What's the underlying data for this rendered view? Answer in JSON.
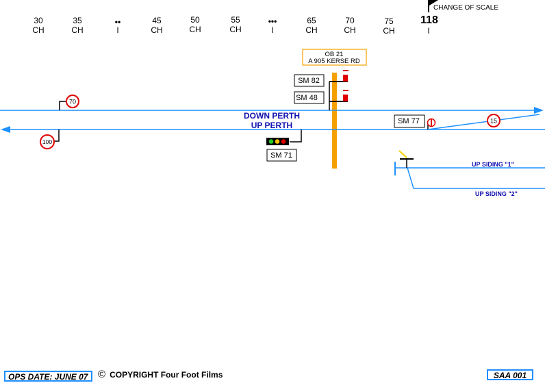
{
  "mileposts": [
    {
      "top": "30",
      "bottom": "CH"
    },
    {
      "top": "35",
      "bottom": "CH"
    },
    {
      "top": "••",
      "bottom": "I"
    },
    {
      "top": "45",
      "bottom": "CH"
    },
    {
      "top": "50",
      "bottom": "CH"
    },
    {
      "top": "55",
      "bottom": "CH"
    },
    {
      "top": "•••",
      "bottom": "I"
    },
    {
      "top": "65",
      "bottom": "CH"
    },
    {
      "top": "70",
      "bottom": "CH"
    },
    {
      "top": "75",
      "bottom": "CH"
    },
    {
      "top": "118",
      "bottom": "I"
    }
  ],
  "change_of_scale": "CHANGE OF SCALE",
  "bridge": {
    "line1": "OB 21",
    "line2": "A 905 KERSE RD"
  },
  "lines": {
    "down": "DOWN PERTH",
    "up": "UP PERTH"
  },
  "signals": {
    "sm82": "SM 82",
    "sm48": "SM 48",
    "sm77": "SM 77",
    "sm71": "SM 71"
  },
  "speed_limits": {
    "down": "70",
    "up": "100",
    "siding": "15"
  },
  "sidings": {
    "siding1": "UP SIDING \"1\"",
    "siding2": "UP SIDING \"2\""
  },
  "footer": {
    "ops_date": "OPS DATE: JUNE 07",
    "copyright_symbol": "©",
    "copyright": "COPYRIGHT Four Foot Films",
    "sheet_id": "SAA 001"
  },
  "colors": {
    "track": "#1e90ff",
    "bridge": "#f5a000",
    "speed_ring": "#e00000",
    "signal_red": "#e00000",
    "text_blue": "#1010b0"
  }
}
